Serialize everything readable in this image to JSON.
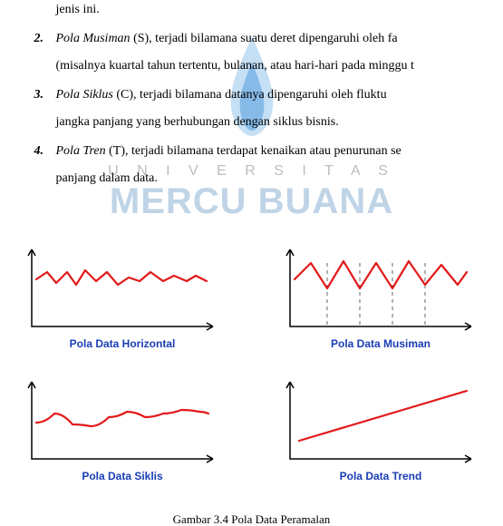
{
  "text": {
    "l0": "jenis ini.",
    "l1_num": "2.",
    "l1": "Pola Musiman (S), terjadi bilamana suatu deret dipengaruhi oleh fa",
    "l1_ital": "Pola Musiman",
    "l2": "(misalnya kuartal tahun tertentu, bulanan, atau hari-hari pada minggu t",
    "l3_num": "3.",
    "l3": "Pola Siklus (C), terjadi bilamana datanya dipengaruhi oleh fluktu",
    "l3_ital": "Pola Siklus",
    "l4": "jangka panjang yang berhubungan dengan siklus bisnis.",
    "l5_num": "4.",
    "l5": "Pola Tren (T), terjadi bilamana terdapat kenaikan atau penurunan se",
    "l5_ital": "Pola Tren",
    "l6": "panjang dalam data."
  },
  "watermark": {
    "univ": "U N I V E R S I T A S",
    "brand": "MERCU BUANA",
    "flame_outer": "#7fb9e6",
    "flame_inner": "#3a8fd6"
  },
  "charts": {
    "stroke": "#e21a1a",
    "axis": "#000000",
    "dash": "#666666",
    "caption_color": "#1a3db5",
    "c1": {
      "caption": "Pola Data Horizontal",
      "points": [
        [
          10,
          38
        ],
        [
          22,
          30
        ],
        [
          32,
          42
        ],
        [
          44,
          30
        ],
        [
          54,
          44
        ],
        [
          64,
          28
        ],
        [
          76,
          40
        ],
        [
          88,
          30
        ],
        [
          100,
          44
        ],
        [
          112,
          36
        ],
        [
          124,
          40
        ],
        [
          136,
          30
        ],
        [
          150,
          40
        ],
        [
          162,
          34
        ],
        [
          176,
          40
        ],
        [
          186,
          34
        ],
        [
          198,
          40
        ]
      ]
    },
    "c2": {
      "caption": "Pola Data Musiman",
      "points": [
        [
          10,
          38
        ],
        [
          28,
          20
        ],
        [
          46,
          48
        ],
        [
          64,
          18
        ],
        [
          82,
          48
        ],
        [
          100,
          20
        ],
        [
          118,
          48
        ],
        [
          136,
          18
        ],
        [
          154,
          44
        ],
        [
          172,
          22
        ],
        [
          190,
          44
        ],
        [
          200,
          30
        ]
      ],
      "dashes_x": [
        46,
        82,
        118,
        154
      ]
    },
    "c3": {
      "caption": "Pola Data Siklis",
      "points": [
        [
          10,
          50
        ],
        [
          30,
          40
        ],
        [
          50,
          52
        ],
        [
          70,
          54
        ],
        [
          90,
          44
        ],
        [
          110,
          38
        ],
        [
          130,
          44
        ],
        [
          150,
          40
        ],
        [
          170,
          36
        ],
        [
          190,
          38
        ],
        [
          200,
          40
        ]
      ]
    },
    "c4": {
      "caption": "Pola Data Trend",
      "points": [
        [
          15,
          70
        ],
        [
          200,
          15
        ]
      ]
    }
  },
  "figure_caption": "Gambar 3.4 Pola Data Peramalan"
}
